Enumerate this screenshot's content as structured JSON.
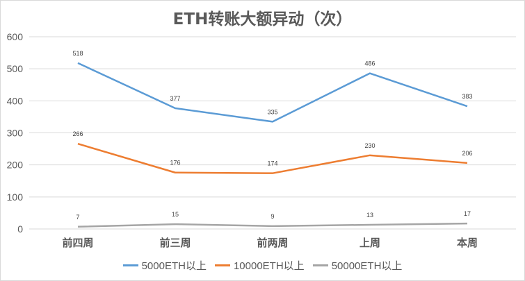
{
  "chart_data": {
    "type": "line",
    "title": "ETH转账大额异动（次）",
    "xlabel": "",
    "ylabel": "",
    "categories": [
      "前四周",
      "前三周",
      "前两周",
      "上周",
      "本周"
    ],
    "series": [
      {
        "name": "5000ETH以上",
        "color": "#5b9bd5",
        "values": [
          518,
          377,
          335,
          486,
          383
        ]
      },
      {
        "name": "10000ETH以上",
        "color": "#ed7d31",
        "values": [
          266,
          176,
          174,
          230,
          206
        ]
      },
      {
        "name": "50000ETH以上",
        "color": "#a5a5a5",
        "values": [
          7,
          15,
          9,
          13,
          17
        ]
      }
    ],
    "ylim": [
      0,
      600
    ],
    "yticks": [
      0,
      100,
      200,
      300,
      400,
      500,
      600
    ],
    "grid": true,
    "legend_position": "bottom",
    "data_labels": true
  }
}
